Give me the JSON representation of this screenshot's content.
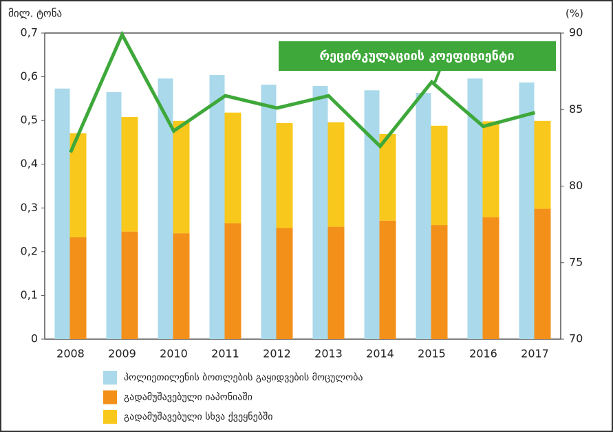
{
  "chart_data": {
    "type": "bar",
    "y_label": "მილ. ტონა",
    "y2_label": "(%)",
    "categories": [
      "2008",
      "2009",
      "2010",
      "2011",
      "2012",
      "2013",
      "2014",
      "2015",
      "2016",
      "2017"
    ],
    "series": [
      {
        "name": "პოლიეთილენის ბოთლების გაყიდვების მოცულობა",
        "color": "#a9d9ea",
        "stack": "a",
        "values": [
          0.573,
          0.565,
          0.596,
          0.604,
          0.582,
          0.579,
          0.569,
          0.563,
          0.596,
          0.587
        ]
      },
      {
        "name": "გადამუშავებული იაპონიაში",
        "color": "#f3901a",
        "stack": "b",
        "values": [
          0.233,
          0.246,
          0.242,
          0.265,
          0.254,
          0.257,
          0.271,
          0.261,
          0.279,
          0.298
        ]
      },
      {
        "name": "გადამუშავებული სხვა ქვეყნებში",
        "color": "#f9c81c",
        "stack": "b",
        "values": [
          0.238,
          0.262,
          0.257,
          0.253,
          0.24,
          0.239,
          0.198,
          0.227,
          0.219,
          0.201
        ]
      },
      {
        "name": "რეცირკულაციის კოეფიციენტი",
        "color": "#3ea83a",
        "axis": "y2",
        "kind": "line",
        "values": [
          82.2,
          89.9,
          83.6,
          85.9,
          85.1,
          85.9,
          82.6,
          86.8,
          83.9,
          84.8
        ]
      }
    ],
    "ylim": [
      0,
      0.7
    ],
    "yticks": [
      0,
      {
        "value": 0.1,
        "label": "0,1"
      },
      {
        "value": 0.2,
        "label": "0,2"
      },
      {
        "value": 0.3,
        "label": "0,3"
      },
      {
        "value": 0.4,
        "label": "0,4"
      },
      {
        "value": 0.5,
        "label": "0,5"
      },
      {
        "value": 0.6,
        "label": "0,6"
      },
      {
        "value": 0.7,
        "label": "0,7"
      }
    ],
    "y2lim": [
      70,
      90
    ],
    "y2ticks": [
      70,
      75,
      80,
      85,
      90
    ]
  }
}
